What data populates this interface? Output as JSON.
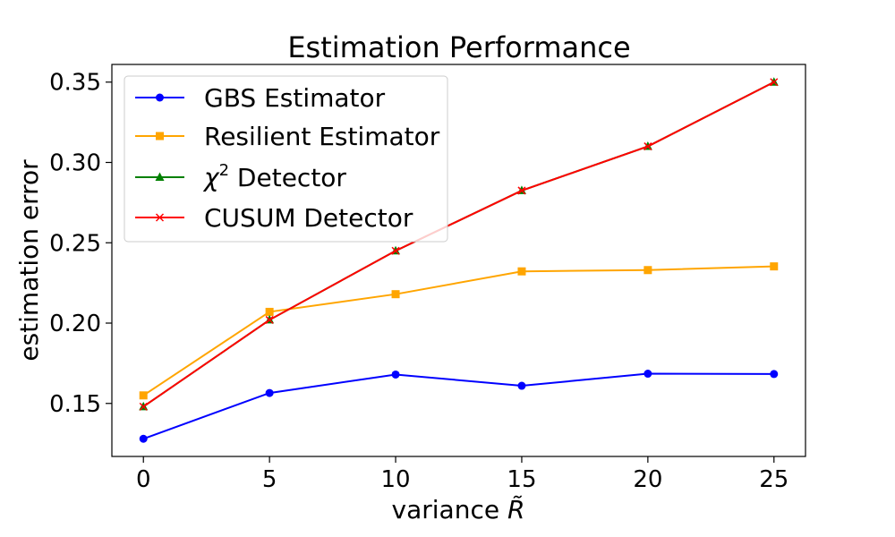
{
  "chart_data": {
    "type": "line",
    "title": "Estimation Performance",
    "xlabel": "variance R̃",
    "ylabel": "estimation error",
    "x": [
      0,
      5,
      10,
      15,
      20,
      25
    ],
    "xticks": [
      "0",
      "5",
      "10",
      "15",
      "20",
      "25"
    ],
    "yticks": [
      "0.15",
      "0.20",
      "0.25",
      "0.30",
      "0.35"
    ],
    "ytick_values": [
      0.15,
      0.2,
      0.25,
      0.3,
      0.35
    ],
    "xlim": [
      -1.25,
      26.25
    ],
    "ylim": [
      0.117,
      0.361
    ],
    "grid": false,
    "legend_position": "top-left",
    "series": [
      {
        "name": "GBS Estimator",
        "color": "#0000ff",
        "marker": "circle",
        "values": [
          0.128,
          0.1565,
          0.168,
          0.161,
          0.1685,
          0.1683
        ]
      },
      {
        "name": "Resilient Estimator",
        "color": "#ffa500",
        "marker": "square",
        "values": [
          0.155,
          0.207,
          0.218,
          0.2322,
          0.233,
          0.2353
        ]
      },
      {
        "name": "χ2 Detector",
        "legend_symbol": "χ",
        "legend_sup": "2",
        "legend_rest": " Detector",
        "color": "#008000",
        "marker": "triangle",
        "values": [
          0.148,
          0.202,
          0.245,
          0.2825,
          0.31,
          0.35
        ]
      },
      {
        "name": "CUSUM Detector",
        "color": "#ff0000",
        "marker": "x",
        "values": [
          0.148,
          0.202,
          0.245,
          0.2825,
          0.31,
          0.35
        ]
      }
    ]
  }
}
